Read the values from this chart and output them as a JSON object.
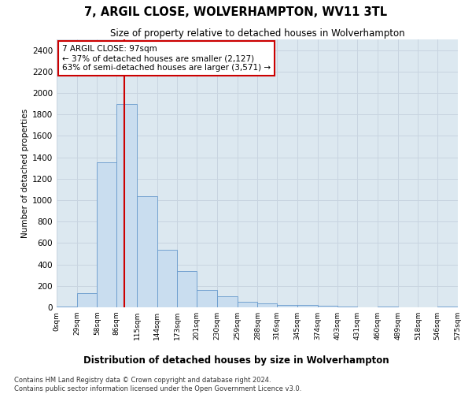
{
  "title": "7, ARGIL CLOSE, WOLVERHAMPTON, WV11 3TL",
  "subtitle": "Size of property relative to detached houses in Wolverhampton",
  "xlabel": "Distribution of detached houses by size in Wolverhampton",
  "ylabel": "Number of detached properties",
  "bar_color": "#c9ddef",
  "bar_edge_color": "#6699cc",
  "grid_color": "#c8d4e0",
  "background_color": "#dce8f0",
  "property_line_x": 97,
  "property_line_color": "#cc0000",
  "annotation_text": "7 ARGIL CLOSE: 97sqm\n← 37% of detached houses are smaller (2,127)\n63% of semi-detached houses are larger (3,571) →",
  "annotation_box_color": "#ffffff",
  "annotation_box_edge": "#cc0000",
  "footer_text": "Contains HM Land Registry data © Crown copyright and database right 2024.\nContains public sector information licensed under the Open Government Licence v3.0.",
  "bin_edges": [
    0,
    29,
    58,
    86,
    115,
    144,
    173,
    201,
    230,
    259,
    288,
    316,
    345,
    374,
    403,
    431,
    460,
    489,
    518,
    546,
    575
  ],
  "bin_labels": [
    "0sqm",
    "29sqm",
    "58sqm",
    "86sqm",
    "115sqm",
    "144sqm",
    "173sqm",
    "201sqm",
    "230sqm",
    "259sqm",
    "288sqm",
    "316sqm",
    "345sqm",
    "374sqm",
    "403sqm",
    "431sqm",
    "460sqm",
    "489sqm",
    "518sqm",
    "546sqm",
    "575sqm"
  ],
  "bar_heights": [
    10,
    130,
    1350,
    1900,
    1040,
    535,
    335,
    165,
    105,
    55,
    35,
    25,
    20,
    15,
    5,
    0,
    10,
    0,
    0,
    5
  ],
  "ylim": [
    0,
    2500
  ],
  "yticks": [
    0,
    200,
    400,
    600,
    800,
    1000,
    1200,
    1400,
    1600,
    1800,
    2000,
    2200,
    2400
  ]
}
